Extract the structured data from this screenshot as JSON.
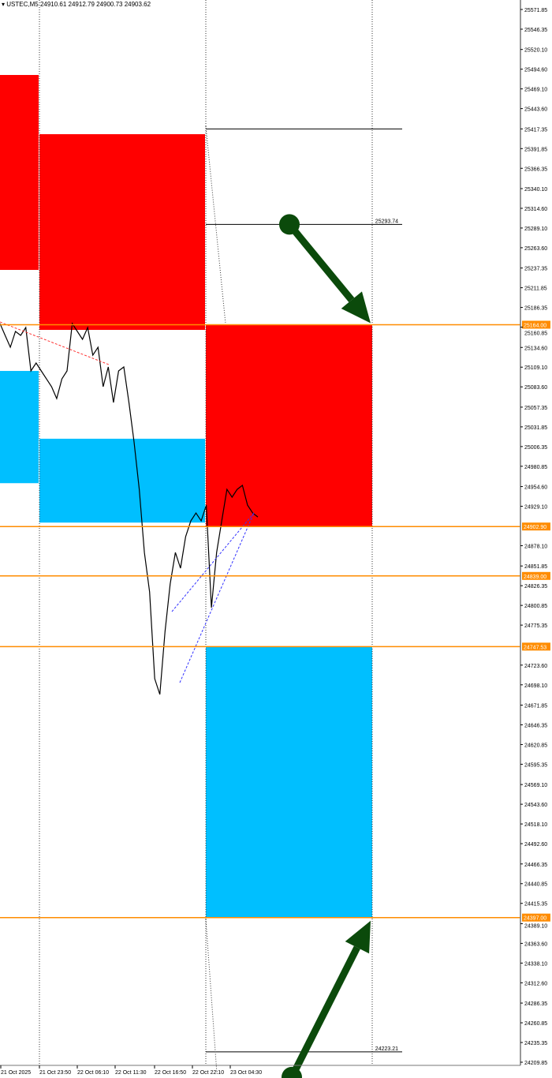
{
  "header": {
    "symbol": "USTEC,M5",
    "ohlc": "24910.61 24912.79 24900.73 24903.62"
  },
  "chart_data": {
    "type": "line",
    "subtype": "price-chart",
    "ylim": [
      24209.85,
      25571.85
    ],
    "grid": false,
    "y_ticks": [
      "25571.85",
      "25546.35",
      "25520.10",
      "25494.60",
      "25469.10",
      "25443.60",
      "25417.35",
      "25391.85",
      "25366.35",
      "25340.10",
      "25314.60",
      "25289.10",
      "25263.60",
      "25237.35",
      "25211.85",
      "25186.35",
      "25160.85",
      "25134.60",
      "25109.10",
      "25083.60",
      "25057.35",
      "25031.85",
      "25006.35",
      "24980.85",
      "24954.60",
      "24929.10",
      "24878.10",
      "24851.85",
      "24826.35",
      "24800.85",
      "24775.35",
      "24723.60",
      "24698.10",
      "24671.85",
      "24646.35",
      "24620.85",
      "24595.35",
      "24569.10",
      "24543.60",
      "24518.10",
      "24492.60",
      "24466.35",
      "24440.85",
      "24415.35",
      "24389.10",
      "24363.60",
      "24338.10",
      "24312.60",
      "24286.35",
      "24260.85",
      "24235.35",
      "24209.85"
    ],
    "x_ticks": [
      "21 Oct 2025",
      "21 Oct 23:50",
      "22 Oct 06:10",
      "22 Oct 11:30",
      "22 Oct 16:50",
      "22 Oct 22:10",
      "23 Oct 04:30"
    ],
    "price_series": [
      25165.5,
      25150.2,
      25134.9,
      25155.3,
      25150.2,
      25160.4,
      25104.2,
      25114.4,
      25104.2,
      25093.9,
      25083.8,
      25068.5,
      25093.9,
      25104.2,
      25165.5,
      25155.3,
      25145.1,
      25160.4,
      25124.6,
      25134.9,
      25083.8,
      25109.3,
      25063.4,
      25104.2,
      25109.3,
      25063.4,
      25012.3,
      24951.0,
      24869.3,
      24818.3,
      24706.0,
      24685.6,
      24767.3,
      24828.6,
      24869.3,
      24849.0,
      24889.8,
      24910.2,
      24920.4,
      24910.2,
      24930.6,
      24797.9,
      24869.3,
      24910.2,
      24951.0,
      24940.9,
      24951.0,
      24956.2,
      24930.6,
      24920.4,
      24915.3
    ],
    "levels": [
      {
        "price": 25164.0,
        "label": "25164.00",
        "color": "#ff8c00"
      },
      {
        "price": 24902.9,
        "label": "24902.90",
        "color": "#ff8c00"
      },
      {
        "price": 24839.0,
        "label": "24839.00",
        "color": "#ff8c00"
      },
      {
        "price": 24747.53,
        "label": "24747.53",
        "color": "#ff8c00"
      },
      {
        "price": 24397.0,
        "label": "24397.00",
        "color": "#ff8c00"
      }
    ],
    "targets": [
      {
        "price": 25417.35,
        "label": ""
      },
      {
        "price": 25293.74,
        "label": "25293.74"
      },
      {
        "price": 24223.21,
        "label": "24223.21"
      }
    ],
    "zones": [
      {
        "kind": "supply",
        "top": 25487.1,
        "bottom": 25234.9,
        "color": "#ff0000",
        "span": "past-1"
      },
      {
        "kind": "supply",
        "top": 25410.5,
        "bottom": 25157.3,
        "color": "#ff0000",
        "span": "past-2"
      },
      {
        "kind": "demand",
        "top": 25104.2,
        "bottom": 24959.0,
        "color": "#00bfff",
        "span": "past-1"
      },
      {
        "kind": "demand",
        "top": 25016.5,
        "bottom": 24908.0,
        "color": "#00bfff",
        "span": "past-2"
      },
      {
        "kind": "supply",
        "top": 25164.0,
        "bottom": 24902.9,
        "color": "#ff0000",
        "span": "current"
      },
      {
        "kind": "demand",
        "top": 24747.53,
        "bottom": 24397.0,
        "color": "#00bfff",
        "span": "current"
      }
    ],
    "arrows": [
      {
        "direction": "down",
        "from": 25293.74,
        "to": 25164.0,
        "color": "#0b4a0b"
      },
      {
        "direction": "up",
        "from": 24223.21,
        "to": 24397.0,
        "color": "#0b4a0b"
      }
    ]
  }
}
